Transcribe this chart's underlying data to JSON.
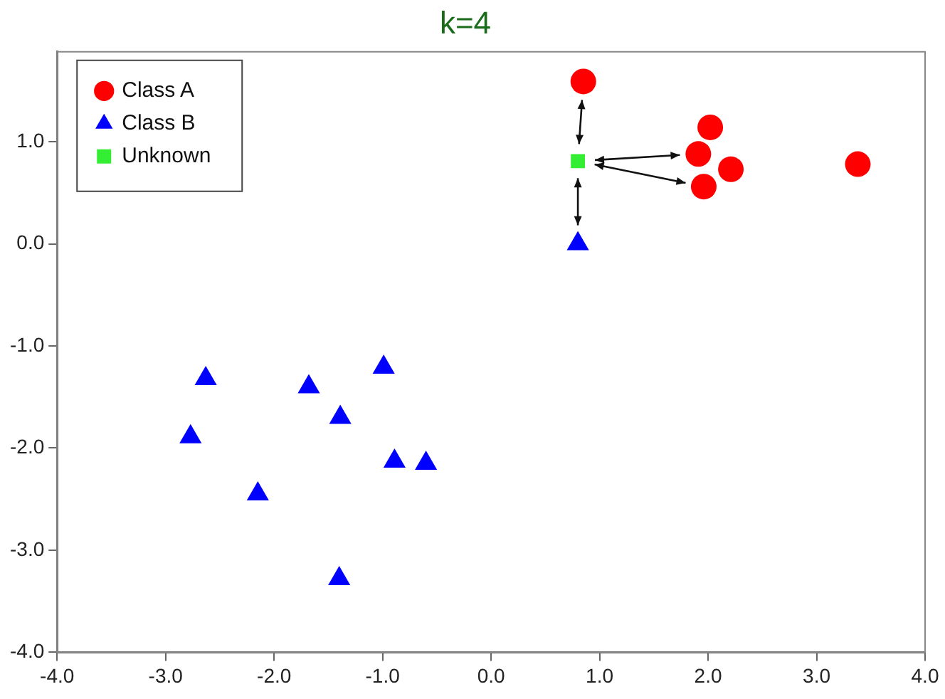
{
  "chart_data": {
    "type": "scatter",
    "title": "k=4",
    "series": [
      {
        "name": "Class A",
        "color": "#ff0000",
        "marker": "circle",
        "x": [
          0.85,
          2.02,
          1.91,
          2.21,
          1.96,
          3.38
        ],
        "values": [
          1.59,
          1.14,
          0.88,
          0.73,
          0.56,
          0.78
        ]
      },
      {
        "name": "Class B",
        "color": "#0000ff",
        "marker": "triangle",
        "x": [
          0.8,
          -2.63,
          -2.77,
          -2.15,
          -1.68,
          -1.39,
          -0.99,
          -0.89,
          -0.6,
          -1.4
        ],
        "values": [
          0.0,
          -1.32,
          -1.89,
          -2.45,
          -1.4,
          -1.7,
          -1.21,
          -2.13,
          -2.15,
          -3.28
        ]
      },
      {
        "name": "Unknown",
        "color": "#33ee33",
        "marker": "square",
        "x": [
          0.8
        ],
        "values": [
          0.81
        ]
      }
    ],
    "xlim": [
      -4,
      4
    ],
    "xticks": [
      {
        "value": -4,
        "label": "-4.0"
      },
      {
        "value": -3,
        "label": "-3.0"
      },
      {
        "value": -2,
        "label": "-2.0"
      },
      {
        "value": -1,
        "label": "-1.0"
      },
      {
        "value": 0,
        "label": "0.0"
      },
      {
        "value": 1,
        "label": "1.0"
      },
      {
        "value": 2,
        "label": "2.0"
      },
      {
        "value": 3,
        "label": "3.0"
      },
      {
        "value": 4,
        "label": "4.0"
      }
    ],
    "ylim": [
      -4,
      1.88
    ],
    "yticks": [
      {
        "value": -4,
        "label": "-4.0"
      },
      {
        "value": -3,
        "label": "-3.0"
      },
      {
        "value": -2,
        "label": "-2.0"
      },
      {
        "value": -1,
        "label": "-1.0"
      },
      {
        "value": 0,
        "label": "0.0"
      },
      {
        "value": 1,
        "label": "1.0"
      }
    ],
    "grid": false,
    "legend": "top left"
  }
}
